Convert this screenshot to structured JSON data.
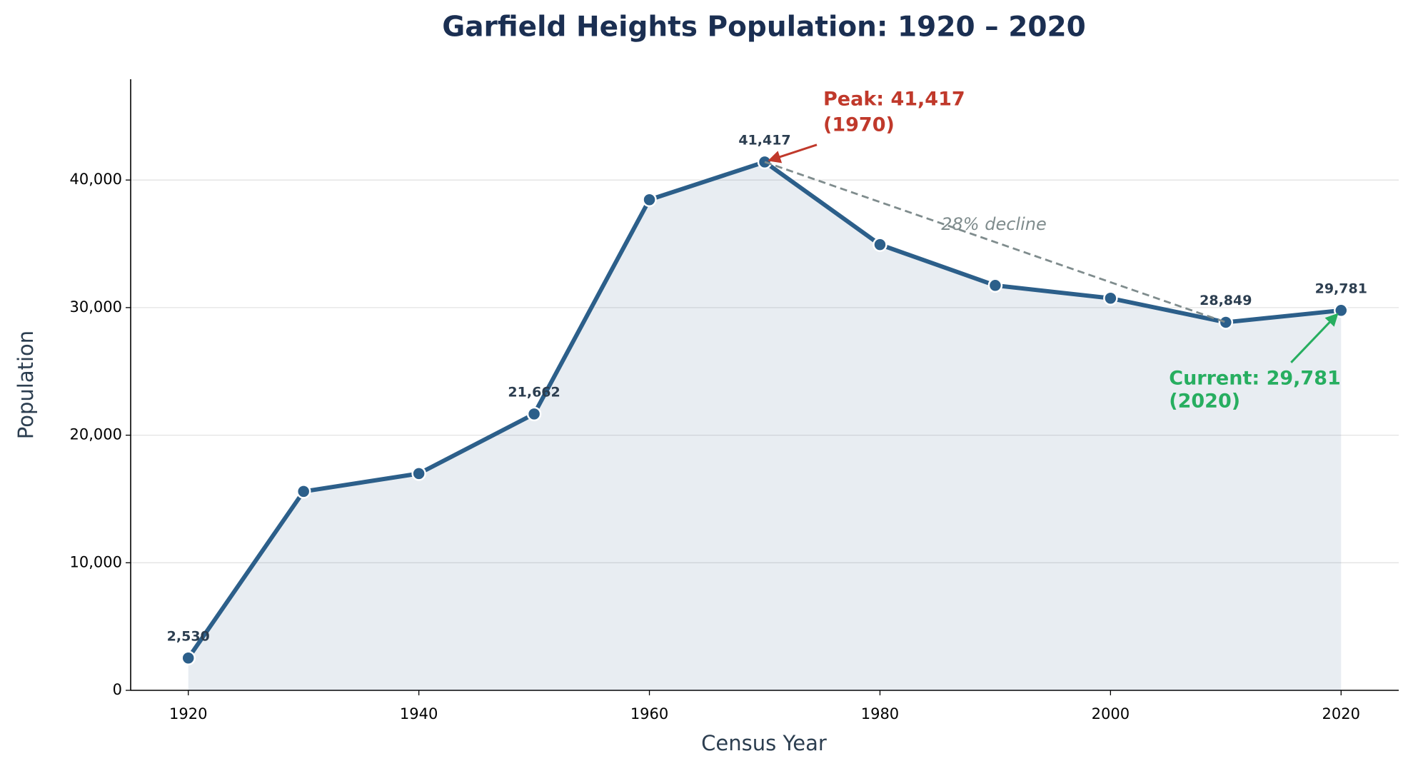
{
  "chart_data": {
    "type": "line",
    "title": "Garfield Heights Population: 1920 – 2020",
    "x_label": "Census Year",
    "y_label": "Population",
    "x": [
      1920,
      1930,
      1940,
      1950,
      1960,
      1970,
      1980,
      1990,
      2000,
      2010,
      2020
    ],
    "series": [
      {
        "name": "Population",
        "color": "#2c5f8a",
        "values": [
          2530,
          15589,
          16989,
          21662,
          38455,
          41417,
          34938,
          31739,
          30734,
          28849,
          29781
        ],
        "value_labels": [
          "2,530",
          null,
          null,
          "21,662",
          null,
          "41,417",
          null,
          null,
          null,
          "28,849",
          "29,781"
        ]
      }
    ],
    "xlim": [
      1915,
      2025
    ],
    "xticks": [
      1920,
      1940,
      1960,
      1980,
      2000,
      2020
    ],
    "ylim": [
      0,
      47900
    ],
    "yticks": [
      0,
      {
        "value": 10000,
        "label": "10,000"
      },
      {
        "value": 20000,
        "label": "20,000"
      },
      {
        "value": 30000,
        "label": "30,000"
      },
      {
        "value": 40000,
        "label": "40,000"
      }
    ],
    "grid": true,
    "annotations": {
      "peak": {
        "lines": [
          "Peak: 41,417",
          "(1970)"
        ],
        "color": "#c0392b"
      },
      "decline": {
        "text": "28% decline",
        "color": "#7f8c8d"
      },
      "current": {
        "lines": [
          "Current: 29,781",
          "(2020)"
        ],
        "color": "#27ae60"
      }
    }
  }
}
